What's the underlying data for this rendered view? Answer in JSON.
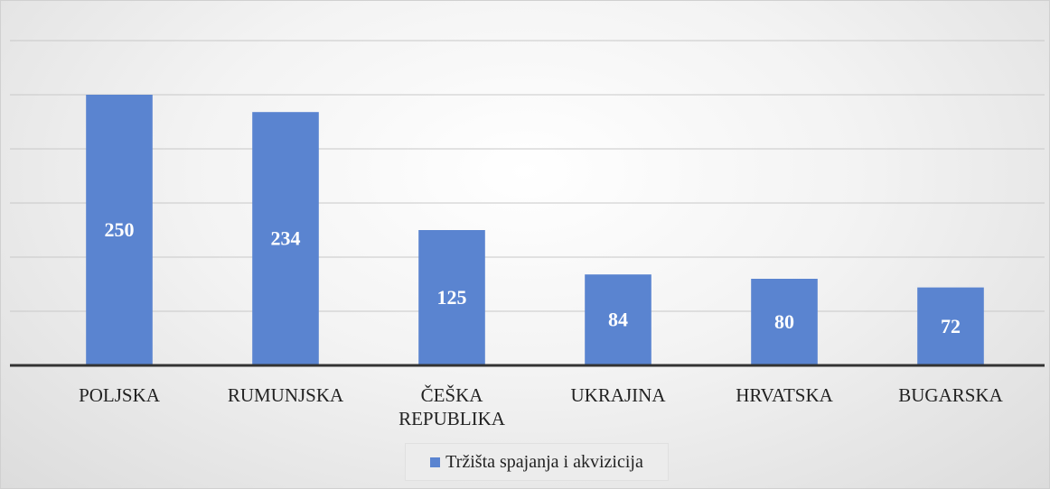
{
  "chart_data": {
    "type": "bar",
    "categories": [
      "POLJSKA",
      "RUMUNJSKA",
      "ČEŠKA REPUBLIKA",
      "UKRAJINA",
      "HRVATSKA",
      "BUGARSKA"
    ],
    "series": [
      {
        "name": "Tržišta spajanja i akvizicija",
        "color": "#5a84d0",
        "values": [
          250,
          234,
          125,
          84,
          80,
          72
        ]
      }
    ],
    "ylim": [
      0,
      300
    ],
    "yticks": [
      0,
      50,
      100,
      150,
      200,
      250,
      300
    ],
    "grid": true,
    "legend": "bottom"
  }
}
